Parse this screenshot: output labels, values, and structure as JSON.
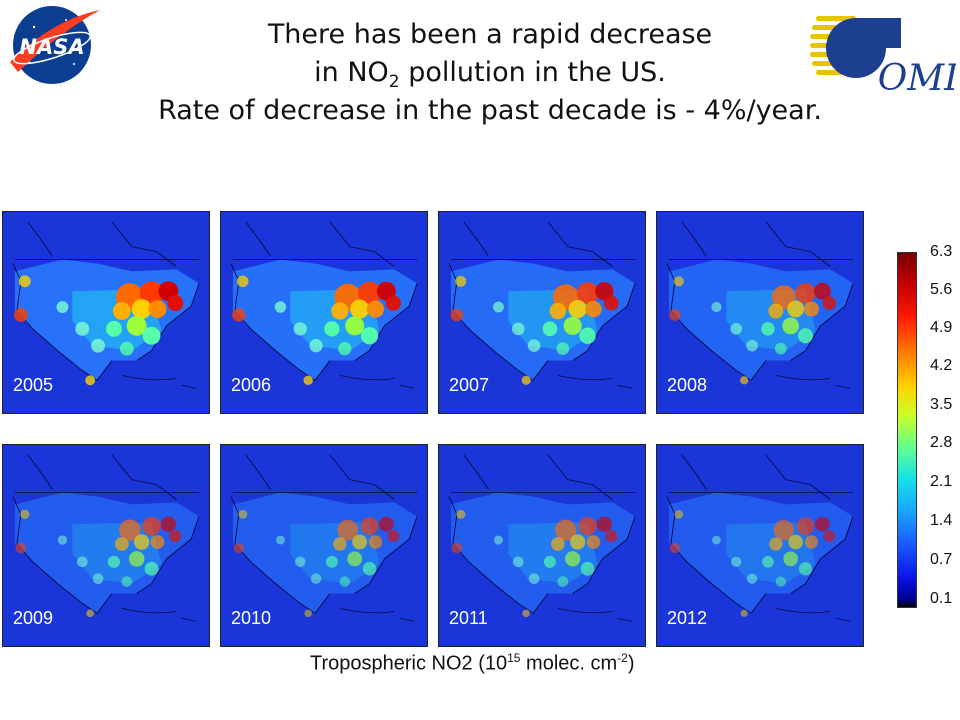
{
  "title": {
    "line1": "There has been a rapid decrease",
    "line2_pre": "in NO",
    "line2_sub": "2",
    "line2_post": " pollution in the US.",
    "line3": "Rate of decrease in the past decade is - 4%/year."
  },
  "logos": {
    "left": "NASA",
    "right": "OMI"
  },
  "panels": [
    {
      "year": "2005",
      "intensity": 1.0
    },
    {
      "year": "2006",
      "intensity": 0.92
    },
    {
      "year": "2007",
      "intensity": 0.82
    },
    {
      "year": "2008",
      "intensity": 0.66
    },
    {
      "year": "2009",
      "intensity": 0.5
    },
    {
      "year": "2010",
      "intensity": 0.45
    },
    {
      "year": "2011",
      "intensity": 0.48
    },
    {
      "year": "2012",
      "intensity": 0.42
    }
  ],
  "colorbar": {
    "ticks": [
      "6.3",
      "5.6",
      "4.9",
      "4.2",
      "3.5",
      "2.8",
      "2.1",
      "1.4",
      "0.7",
      "0.1"
    ],
    "label_pre": "Tropospheric NO2 (10",
    "label_sup1": "15",
    "label_mid": " molec. cm",
    "label_sup2": "-2",
    "label_post": ")"
  }
}
